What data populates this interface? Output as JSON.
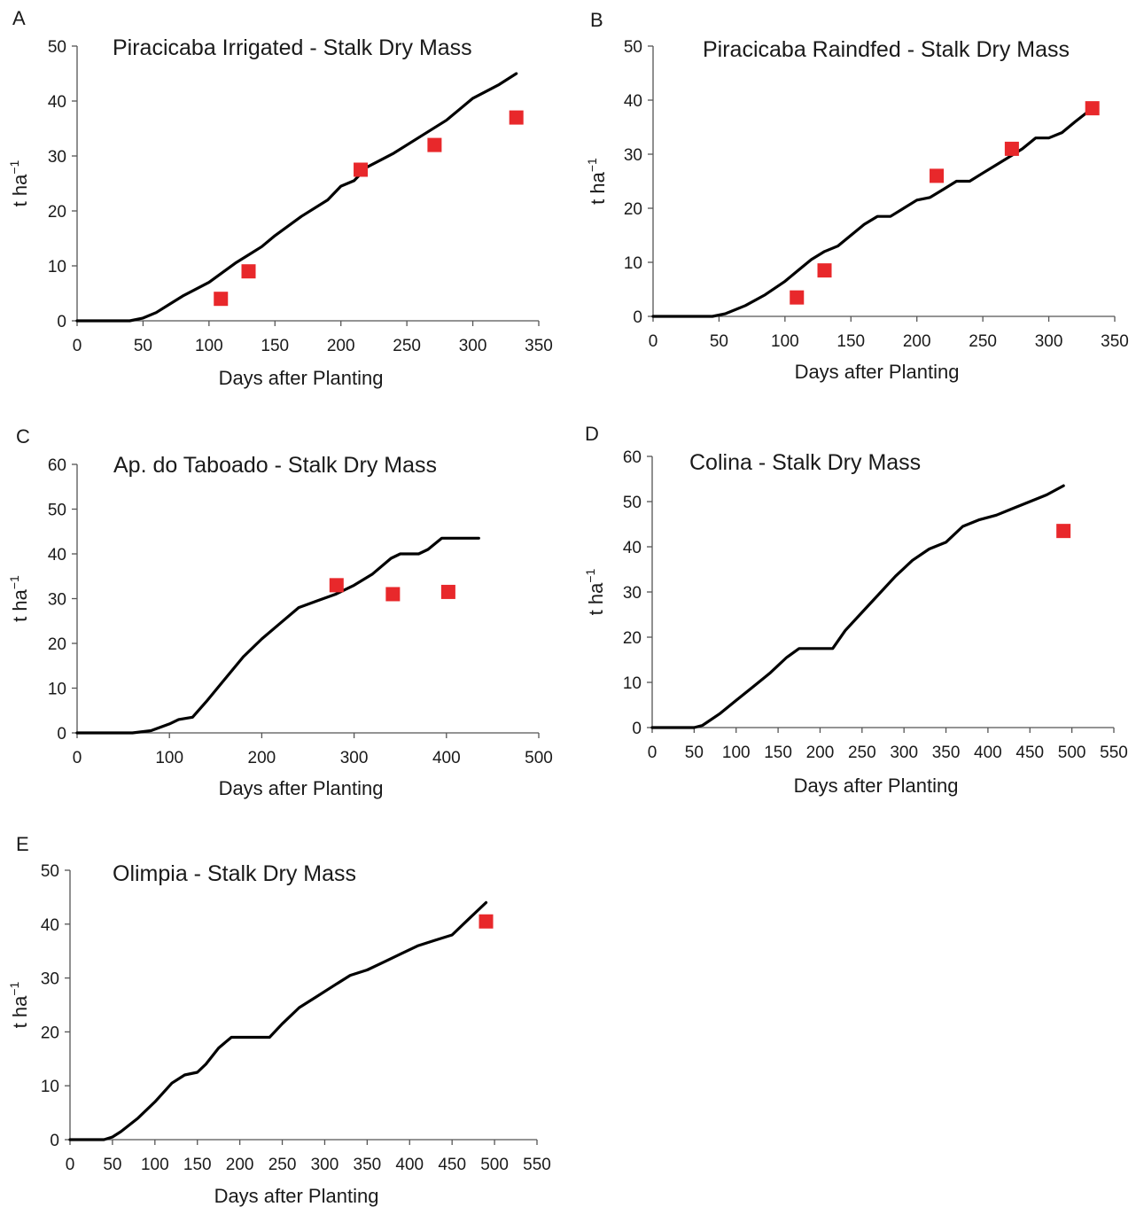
{
  "chart_data": [
    {
      "panel": "A",
      "type": "line",
      "title": "Piracicaba Irrigated - Stalk Dry Mass",
      "xlabel": "Days after Planting",
      "ylabel": "t ha",
      "ylabel_sup": "−1",
      "xlim": [
        0,
        350
      ],
      "ylim": [
        0,
        50
      ],
      "xticks": [
        0,
        50,
        100,
        150,
        200,
        250,
        300,
        350
      ],
      "yticks": [
        0,
        10,
        20,
        30,
        40,
        50
      ],
      "series": [
        {
          "kind": "line",
          "color": "#000000",
          "x": [
            0,
            40,
            50,
            60,
            70,
            80,
            100,
            120,
            130,
            140,
            150,
            170,
            190,
            200,
            210,
            220,
            240,
            260,
            280,
            290,
            300,
            320,
            333
          ],
          "y": [
            0,
            0,
            0.5,
            1.5,
            3,
            4.5,
            7,
            10.5,
            12,
            13.5,
            15.5,
            19,
            22,
            24.5,
            25.5,
            28,
            30.5,
            33.5,
            36.5,
            38.5,
            40.5,
            43,
            45
          ]
        },
        {
          "kind": "scatter",
          "color": "#e8282b",
          "x": [
            109,
            130,
            215,
            271,
            333
          ],
          "y": [
            4,
            9,
            27.5,
            32,
            37
          ]
        }
      ]
    },
    {
      "panel": "B",
      "type": "line",
      "title": "Piracicaba Raindfed - Stalk Dry Mass",
      "xlabel": "Days after Planting",
      "ylabel": "t ha",
      "ylabel_sup": "−1",
      "xlim": [
        0,
        350
      ],
      "ylim": [
        0,
        50
      ],
      "xticks": [
        0,
        50,
        100,
        150,
        200,
        250,
        300,
        350
      ],
      "yticks": [
        0,
        10,
        20,
        30,
        40,
        50
      ],
      "series": [
        {
          "kind": "line",
          "color": "#000000",
          "x": [
            0,
            45,
            55,
            70,
            85,
            100,
            110,
            120,
            130,
            140,
            150,
            160,
            170,
            180,
            190,
            200,
            210,
            220,
            230,
            240,
            250,
            260,
            270,
            280,
            290,
            300,
            310,
            320,
            333
          ],
          "y": [
            0,
            0,
            0.5,
            2,
            4,
            6.5,
            8.5,
            10.5,
            12,
            13,
            15,
            17,
            18.5,
            18.5,
            20,
            21.5,
            22,
            23.5,
            25,
            25,
            26.5,
            28,
            29.5,
            31,
            33,
            33,
            34,
            36,
            38.5
          ]
        },
        {
          "kind": "scatter",
          "color": "#e8282b",
          "x": [
            109,
            130,
            215,
            272,
            333
          ],
          "y": [
            3.5,
            8.5,
            26,
            31,
            38.5
          ]
        }
      ]
    },
    {
      "panel": "C",
      "type": "line",
      "title": "Ap. do Taboado - Stalk Dry Mass",
      "xlabel": "Days after Planting",
      "ylabel": "t ha",
      "ylabel_sup": "−1",
      "xlim": [
        0,
        500
      ],
      "ylim": [
        0,
        60
      ],
      "xticks": [
        0,
        100,
        200,
        300,
        400,
        500
      ],
      "yticks": [
        0,
        10,
        20,
        30,
        40,
        50,
        60
      ],
      "series": [
        {
          "kind": "line",
          "color": "#000000",
          "x": [
            0,
            60,
            80,
            100,
            110,
            125,
            140,
            160,
            180,
            200,
            220,
            240,
            260,
            280,
            300,
            320,
            340,
            350,
            370,
            380,
            395,
            435
          ],
          "y": [
            0,
            0,
            0.5,
            2,
            3,
            3.5,
            7,
            12,
            17,
            21,
            24.5,
            28,
            29.5,
            31,
            33,
            35.5,
            39,
            40,
            40,
            41,
            43.5,
            43.5
          ]
        },
        {
          "kind": "scatter",
          "color": "#e8282b",
          "x": [
            281,
            342,
            402
          ],
          "y": [
            33,
            31,
            31.5
          ]
        }
      ]
    },
    {
      "panel": "D",
      "type": "line",
      "title": "Colina - Stalk Dry Mass",
      "xlabel": "Days after Planting",
      "ylabel": "t ha",
      "ylabel_sup": "−1",
      "xlim": [
        0,
        550
      ],
      "ylim": [
        0,
        60
      ],
      "xticks": [
        0,
        50,
        100,
        150,
        200,
        250,
        300,
        350,
        400,
        450,
        500,
        550
      ],
      "yticks": [
        0,
        10,
        20,
        30,
        40,
        50,
        60
      ],
      "series": [
        {
          "kind": "line",
          "color": "#000000",
          "x": [
            0,
            50,
            60,
            80,
            100,
            120,
            140,
            160,
            175,
            180,
            200,
            215,
            230,
            250,
            270,
            290,
            310,
            330,
            350,
            370,
            390,
            410,
            430,
            450,
            470,
            490
          ],
          "y": [
            0,
            0,
            0.5,
            3,
            6,
            9,
            12,
            15.5,
            17.5,
            17.5,
            17.5,
            17.5,
            21.5,
            25.5,
            29.5,
            33.5,
            37,
            39.5,
            41,
            44.5,
            46,
            47,
            48.5,
            50,
            51.5,
            53.5
          ]
        },
        {
          "kind": "scatter",
          "color": "#e8282b",
          "x": [
            490
          ],
          "y": [
            43.5
          ]
        }
      ]
    },
    {
      "panel": "E",
      "type": "line",
      "title": "Olimpia - Stalk Dry Mass",
      "xlabel": "Days after Planting",
      "ylabel": "t ha",
      "ylabel_sup": "−1",
      "xlim": [
        0,
        550
      ],
      "ylim": [
        0,
        50
      ],
      "xticks": [
        0,
        50,
        100,
        150,
        200,
        250,
        300,
        350,
        400,
        450,
        500,
        550
      ],
      "yticks": [
        0,
        10,
        20,
        30,
        40,
        50
      ],
      "series": [
        {
          "kind": "line",
          "color": "#000000",
          "x": [
            0,
            40,
            50,
            60,
            80,
            100,
            120,
            135,
            150,
            160,
            175,
            190,
            200,
            215,
            235,
            250,
            270,
            290,
            310,
            330,
            350,
            370,
            390,
            410,
            430,
            450,
            470,
            490
          ],
          "y": [
            0,
            0,
            0.5,
            1.5,
            4,
            7,
            10.5,
            12,
            12.5,
            14,
            17,
            19,
            19,
            19,
            19,
            21.5,
            24.5,
            26.5,
            28.5,
            30.5,
            31.5,
            33,
            34.5,
            36,
            37,
            38,
            41,
            44
          ]
        },
        {
          "kind": "scatter",
          "color": "#e8282b",
          "x": [
            490
          ],
          "y": [
            40.5
          ]
        }
      ]
    }
  ]
}
